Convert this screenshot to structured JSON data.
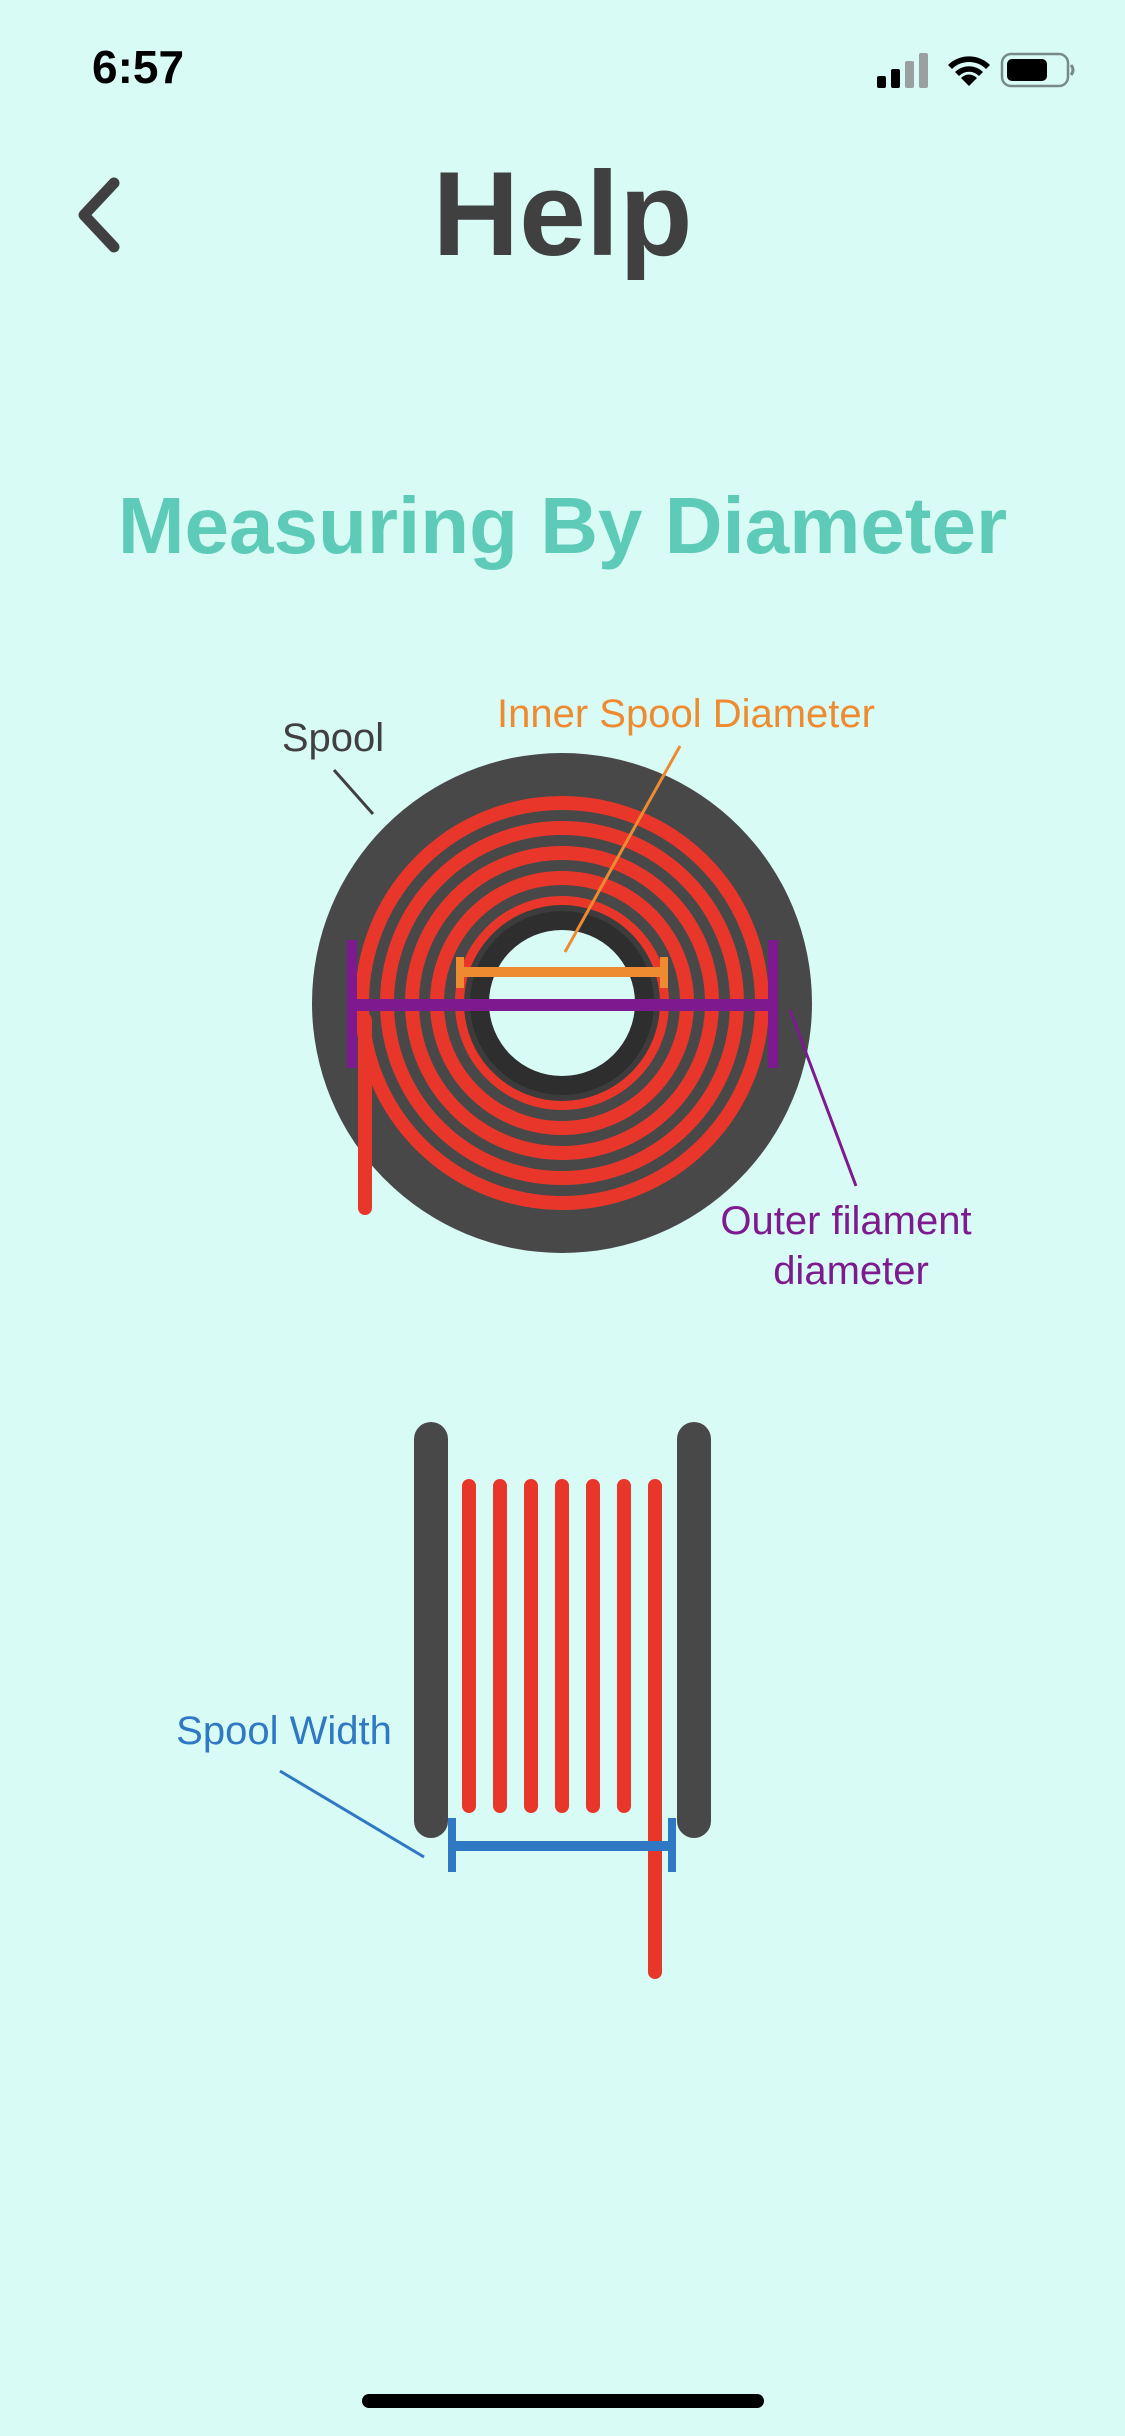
{
  "status_bar": {
    "time": "6:57"
  },
  "nav": {
    "title": "Help",
    "back_icon": "chevron-left-icon"
  },
  "section": {
    "title": "Measuring By Diameter"
  },
  "diagram_front": {
    "label_spool": "Spool",
    "label_inner_diameter": "Inner Spool Diameter",
    "label_outer_line1": "Outer filament",
    "label_outer_line2": "diameter"
  },
  "diagram_side": {
    "label_spool_width": "Spool Width"
  },
  "colors": {
    "background": "#d9fbf6",
    "accent_teal": "#5ecab8",
    "spool_gray": "#484848",
    "filament_red": "#e8372a",
    "inner_orange": "#ee8b30",
    "outer_purple": "#7d1a90",
    "width_blue": "#2f78c4",
    "title_gray": "#404040"
  }
}
